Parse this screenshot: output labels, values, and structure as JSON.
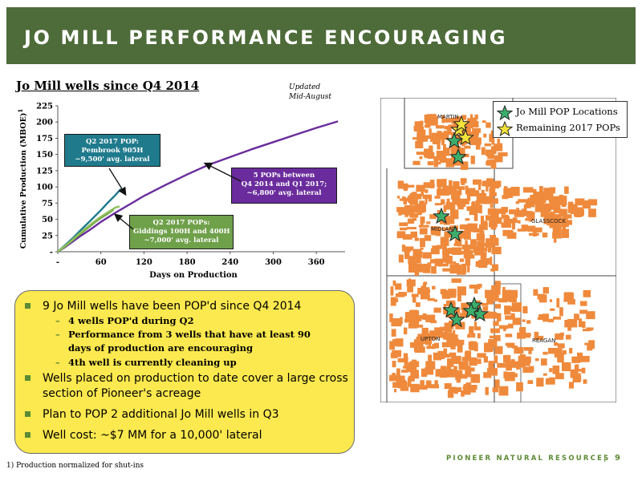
{
  "header": {
    "title": "JO MILL PERFORMANCE ENCOURAGING"
  },
  "chart_data": {
    "type": "line",
    "title": "Jo Mill wells since Q4 2014",
    "note": [
      "Updated",
      "Mid-August"
    ],
    "xlabel": "Days on Production",
    "ylabel": "Cumulative Production (MBOE)",
    "ylabel_superscript": "1",
    "xlim": [
      0,
      400
    ],
    "ylim": [
      0,
      225
    ],
    "x_ticks": [
      0,
      60,
      120,
      180,
      240,
      300,
      360
    ],
    "x_tick_labels": [
      "-",
      "60",
      "120",
      "180",
      "240",
      "300",
      "360"
    ],
    "y_ticks": [
      0,
      25,
      50,
      75,
      100,
      125,
      150,
      175,
      200,
      225
    ],
    "y_tick_labels": [
      "-",
      "25",
      "50",
      "75",
      "100",
      "125",
      "150",
      "175",
      "200",
      "225"
    ],
    "colors": {
      "teal": "#1f7a8c",
      "purple": "#6a2c9c",
      "green": "#6fa04a",
      "green_light": "#8fbf5a"
    },
    "series": [
      {
        "key": "purple",
        "color": "#6a2c9c",
        "points": [
          [
            0,
            0
          ],
          [
            10,
            7
          ],
          [
            20,
            15
          ],
          [
            30,
            23
          ],
          [
            45,
            34
          ],
          [
            60,
            46
          ],
          [
            80,
            60
          ],
          [
            100,
            73
          ],
          [
            120,
            86
          ],
          [
            150,
            103
          ],
          [
            180,
            119
          ],
          [
            210,
            134
          ],
          [
            240,
            146
          ],
          [
            270,
            158
          ],
          [
            300,
            169
          ],
          [
            330,
            180
          ],
          [
            360,
            191
          ],
          [
            390,
            201
          ]
        ]
      },
      {
        "key": "teal",
        "color": "#1f7a8c",
        "points": [
          [
            0,
            0
          ],
          [
            10,
            10
          ],
          [
            20,
            20
          ],
          [
            30,
            31
          ],
          [
            40,
            42
          ],
          [
            50,
            53
          ],
          [
            60,
            64
          ],
          [
            70,
            76
          ],
          [
            80,
            87
          ],
          [
            88,
            97
          ]
        ]
      },
      {
        "key": "green",
        "color": "#6fa04a",
        "points": [
          [
            0,
            0
          ],
          [
            10,
            8
          ],
          [
            20,
            17
          ],
          [
            30,
            26
          ],
          [
            40,
            35
          ],
          [
            50,
            44
          ],
          [
            60,
            52
          ],
          [
            70,
            59
          ],
          [
            78,
            65
          ]
        ]
      },
      {
        "key": "green_light",
        "color": "#8fbf5a",
        "points": [
          [
            0,
            0
          ],
          [
            10,
            9
          ],
          [
            20,
            18
          ],
          [
            30,
            28
          ],
          [
            40,
            37
          ],
          [
            50,
            46
          ],
          [
            60,
            54
          ],
          [
            70,
            61
          ],
          [
            80,
            68
          ],
          [
            86,
            70
          ]
        ]
      }
    ],
    "annotations": [
      {
        "target": "teal",
        "lines": [
          "Q2 2017 POP:",
          "Pembrook 905H",
          "~9,500' avg. lateral"
        ]
      },
      {
        "target": "purple",
        "lines": [
          "5 POPs between",
          "Q4 2014 and Q1 2017;",
          "~6,800' avg. lateral"
        ]
      },
      {
        "target": "green",
        "lines": [
          "Q2 2017 POPs:",
          "Giddings 100H and 400H",
          "~7,000' avg. lateral"
        ]
      }
    ]
  },
  "bullets": [
    {
      "level": 1,
      "text": "9 Jo Mill wells have been POP'd since Q4 2014"
    },
    {
      "level": 2,
      "text": "4 wells POP'd during Q2"
    },
    {
      "level": 2,
      "text": "Performance from 3 wells that have at least 90 days of production are encouraging"
    },
    {
      "level": 2,
      "text": "4th well is currently cleaning up"
    },
    {
      "level": 1,
      "text": "Wells placed on production to date cover a large cross section of Pioneer's acreage"
    },
    {
      "level": 1,
      "text": "Plan to POP 2 additional Jo Mill wells in Q3"
    },
    {
      "level": 1,
      "text": "Well cost: ~$7 MM for a 10,000' lateral"
    }
  ],
  "map": {
    "legend": [
      {
        "label": "Jo Mill POP Locations",
        "color": "#3cae6c"
      },
      {
        "label": "Remaining 2017 POPs",
        "color": "#f2e23a"
      }
    ],
    "counties": [
      "MARTIN",
      "MIDLAND",
      "GLASSCOCK",
      "UPTON",
      "REAGAN"
    ],
    "acreage_color": "#ef8a3c"
  },
  "footer": {
    "footnote": "1)  Production normalized for shut-ins",
    "company": "PIONEER NATURAL RESOURCES",
    "separator": "|",
    "page_number": "9"
  }
}
